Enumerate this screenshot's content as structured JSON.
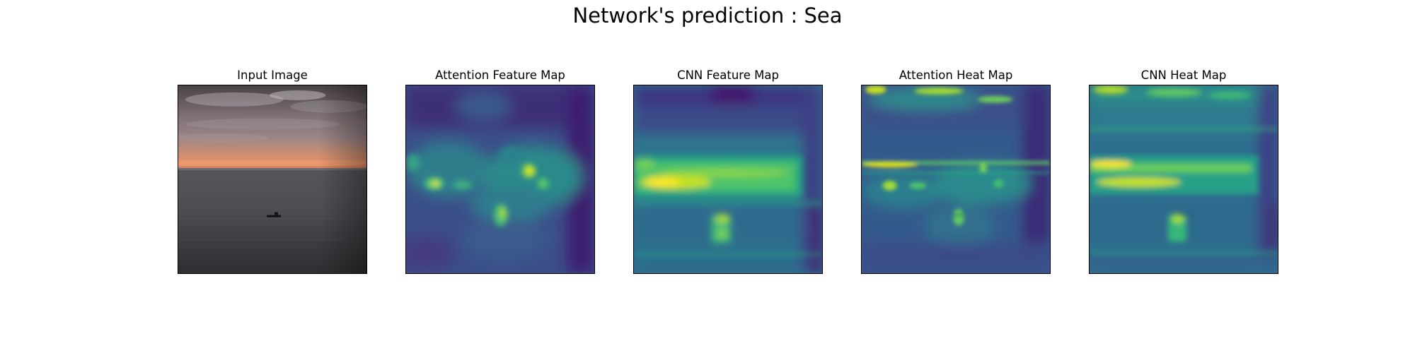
{
  "figure": {
    "title": "Network's prediction : Sea"
  },
  "panels": [
    {
      "id": "input-image",
      "title": "Input Image",
      "kind": "photo"
    },
    {
      "id": "attention-feature-map",
      "title": "Attention Feature Map",
      "kind": "heatmap",
      "colormap": "viridis"
    },
    {
      "id": "cnn-feature-map",
      "title": "CNN Feature Map",
      "kind": "heatmap",
      "colormap": "viridis"
    },
    {
      "id": "attention-heat-map",
      "title": "Attention Heat Map",
      "kind": "heatmap-overlay",
      "colormap": "viridis"
    },
    {
      "id": "cnn-heat-map",
      "title": "CNN Heat Map",
      "kind": "heatmap-overlay",
      "colormap": "viridis"
    }
  ],
  "colors": {
    "viridis_low": "#440154",
    "viridis_mid": "#21918c",
    "viridis_high": "#fde725",
    "sunset": "#d98a6a",
    "sky": "#8a7f82",
    "sea": "#4a4a4e"
  }
}
